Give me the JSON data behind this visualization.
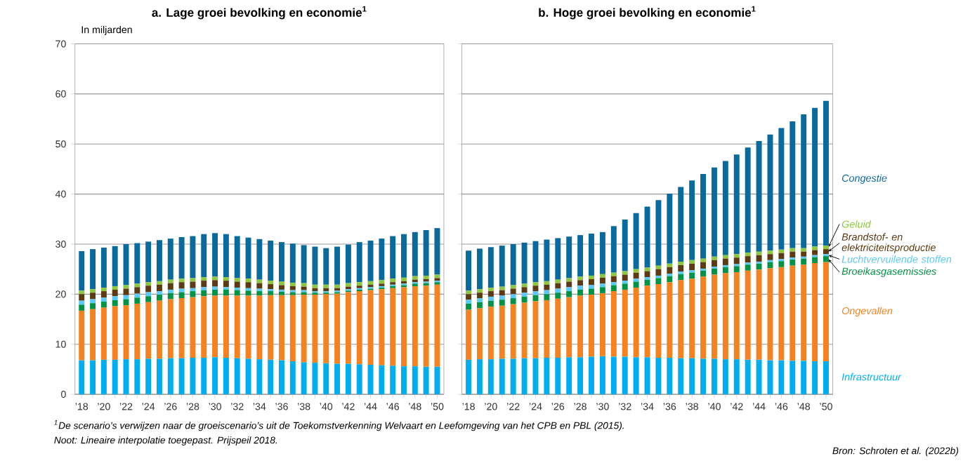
{
  "chart_data": [
    {
      "type": "bar",
      "stacked": true,
      "title": "a. Lage groei bevolking en economie$^{1}$",
      "ylabel": "In miljarden",
      "categories": [
        "’18",
        null,
        "’20",
        null,
        "’22",
        null,
        "’24",
        null,
        "’26",
        null,
        "’28",
        null,
        "’30",
        null,
        "’32",
        null,
        "’34",
        null,
        "’36",
        null,
        "’38",
        null,
        "’40",
        null,
        "’42",
        null,
        "’44",
        null,
        "’46",
        null,
        "’48",
        null,
        "’50"
      ],
      "ylim": [
        0,
        70
      ],
      "yticks": [
        0,
        10,
        20,
        30,
        40,
        50,
        60,
        70
      ],
      "grid": "y",
      "series": [
        {
          "color": "#00aeef",
          "values": [
            6.8,
            6.8,
            6.9,
            6.9,
            7.0,
            7.0,
            7.1,
            7.1,
            7.2,
            7.2,
            7.3,
            7.3,
            7.4,
            7.3,
            7.2,
            7.1,
            7.0,
            6.9,
            6.8,
            6.6,
            6.4,
            6.3,
            6.2,
            6.1,
            6.1,
            6.0,
            5.9,
            5.8,
            5.7,
            5.6,
            5.6,
            5.5,
            5.5
          ]
        },
        {
          "color": "#f58220",
          "values": [
            9.9,
            10.2,
            10.4,
            10.7,
            10.8,
            11.1,
            11.3,
            11.6,
            11.8,
            12.0,
            12.1,
            12.3,
            12.3,
            12.4,
            12.5,
            12.6,
            12.7,
            12.9,
            13.0,
            13.2,
            13.5,
            13.6,
            13.8,
            14.0,
            14.3,
            14.6,
            14.9,
            15.2,
            15.5,
            15.8,
            16.0,
            16.2,
            16.4
          ]
        },
        {
          "color": "#009245",
          "values": [
            1.2,
            1.2,
            1.2,
            1.2,
            1.2,
            1.2,
            1.2,
            1.2,
            1.2,
            1.2,
            1.2,
            1.2,
            1.2,
            1.2,
            1.1,
            1.0,
            0.9,
            0.8,
            0.7,
            0.6,
            0.5,
            0.4,
            0.3,
            0.3,
            0.3,
            0.3,
            0.3,
            0.3,
            0.4,
            0.4,
            0.5,
            0.5,
            0.5
          ]
        },
        {
          "color": "#5bc8f5",
          "values": [
            0.8,
            0.8,
            0.8,
            0.8,
            0.8,
            0.8,
            0.8,
            0.7,
            0.7,
            0.7,
            0.6,
            0.6,
            0.6,
            0.5,
            0.5,
            0.5,
            0.5,
            0.4,
            0.4,
            0.4,
            0.4,
            0.3,
            0.3,
            0.3,
            0.3,
            0.3,
            0.3,
            0.3,
            0.3,
            0.3,
            0.3,
            0.3,
            0.3
          ]
        },
        {
          "color": "#5c3a14",
          "values": [
            1.3,
            1.3,
            1.3,
            1.3,
            1.3,
            1.3,
            1.3,
            1.3,
            1.3,
            1.3,
            1.3,
            1.3,
            1.3,
            1.3,
            1.2,
            1.2,
            1.1,
            1.0,
            0.9,
            0.8,
            0.7,
            0.6,
            0.6,
            0.5,
            0.5,
            0.5,
            0.5,
            0.5,
            0.5,
            0.5,
            0.5,
            0.5,
            0.5
          ]
        },
        {
          "color": "#8dc63f",
          "values": [
            0.7,
            0.7,
            0.7,
            0.7,
            0.7,
            0.7,
            0.7,
            0.7,
            0.7,
            0.7,
            0.7,
            0.7,
            0.7,
            0.7,
            0.7,
            0.7,
            0.7,
            0.7,
            0.7,
            0.7,
            0.7,
            0.7,
            0.7,
            0.7,
            0.7,
            0.7,
            0.7,
            0.7,
            0.7,
            0.7,
            0.7,
            0.7,
            0.7
          ]
        },
        {
          "color": "#0a6a9c",
          "values": [
            7.9,
            8.0,
            8.0,
            8.0,
            8.2,
            8.1,
            8.1,
            8.2,
            8.2,
            8.3,
            8.4,
            8.6,
            8.7,
            8.6,
            8.4,
            8.2,
            8.1,
            8.0,
            7.9,
            7.8,
            7.6,
            7.6,
            7.3,
            7.6,
            7.7,
            8.0,
            8.1,
            8.3,
            8.5,
            8.7,
            8.8,
            9.1,
            9.3
          ]
        }
      ],
      "annotations": [
        "$^{1}$De scenario’s verwijzen naar de groeiscenario’s uit de Toekomstverkenning Welvaart en Leefomgeving van het CPB en PBL (2015).",
        "Noot: Lineaire interpolatie toegepast. Prijspeil 2018."
      ]
    },
    {
      "type": "bar",
      "stacked": true,
      "title": "b. Hoge groei bevolking en economie$^{1}$",
      "categories": [
        "’18",
        null,
        "’20",
        null,
        "’22",
        null,
        "’24",
        null,
        "’26",
        null,
        "’28",
        null,
        "’30",
        null,
        "’32",
        null,
        "’34",
        null,
        "’36",
        null,
        "’38",
        null,
        "’40",
        null,
        "’42",
        null,
        "’44",
        null,
        "’46",
        null,
        "’48",
        null,
        "’50"
      ],
      "ylim": [
        0,
        70
      ],
      "yticks": [
        0,
        10,
        20,
        30,
        40,
        50,
        60,
        70
      ],
      "grid": "y",
      "tick_labels": "x",
      "legend": "right",
      "series": [
        {
          "name": "Infrastructuur",
          "color": "#00aeef",
          "values": [
            6.9,
            7.0,
            7.0,
            7.1,
            7.1,
            7.2,
            7.2,
            7.3,
            7.3,
            7.4,
            7.4,
            7.5,
            7.6,
            7.5,
            7.5,
            7.4,
            7.4,
            7.3,
            7.3,
            7.2,
            7.2,
            7.1,
            7.1,
            7.0,
            7.0,
            6.9,
            6.9,
            6.8,
            6.8,
            6.7,
            6.7,
            6.6,
            6.6
          ]
        },
        {
          "name": "Ongevallen",
          "color": "#f58220",
          "values": [
            10.0,
            10.2,
            10.5,
            10.6,
            10.9,
            11.1,
            11.4,
            11.5,
            11.8,
            12.0,
            12.3,
            12.4,
            12.6,
            13.1,
            13.4,
            13.9,
            14.3,
            14.7,
            15.1,
            15.6,
            15.9,
            16.4,
            16.8,
            17.2,
            17.4,
            17.8,
            18.0,
            18.4,
            18.6,
            19.0,
            19.2,
            19.6,
            19.8
          ]
        },
        {
          "name": "Broeikasgasemissies",
          "color": "#009245",
          "values": [
            1.2,
            1.2,
            1.2,
            1.2,
            1.2,
            1.2,
            1.2,
            1.2,
            1.2,
            1.2,
            1.2,
            1.2,
            1.2,
            1.2,
            1.2,
            1.2,
            1.2,
            1.2,
            1.2,
            1.2,
            1.2,
            1.2,
            1.2,
            1.2,
            1.2,
            1.2,
            1.2,
            1.2,
            1.2,
            1.2,
            1.2,
            1.2,
            1.2
          ]
        },
        {
          "name": "Luchtvervuilende stoffen",
          "color": "#5bc8f5",
          "values": [
            0.8,
            0.8,
            0.8,
            0.8,
            0.8,
            0.8,
            0.8,
            0.8,
            0.8,
            0.8,
            0.8,
            0.7,
            0.7,
            0.6,
            0.6,
            0.6,
            0.5,
            0.5,
            0.5,
            0.5,
            0.5,
            0.4,
            0.4,
            0.4,
            0.4,
            0.4,
            0.4,
            0.4,
            0.4,
            0.4,
            0.4,
            0.4,
            0.4
          ]
        },
        {
          "name": "Brandstof- en elektriciteitsproductie",
          "color": "#5c3a14",
          "values": [
            1.1,
            1.1,
            1.1,
            1.1,
            1.1,
            1.1,
            1.1,
            1.1,
            1.1,
            1.1,
            1.1,
            1.2,
            1.2,
            1.2,
            1.2,
            1.2,
            1.2,
            1.3,
            1.3,
            1.3,
            1.3,
            1.3,
            1.3,
            1.3,
            1.3,
            1.3,
            1.3,
            1.2,
            1.2,
            1.2,
            1.0,
            1.0,
            1.0
          ]
        },
        {
          "name": "Geluid",
          "color": "#8dc63f",
          "values": [
            0.7,
            0.7,
            0.7,
            0.7,
            0.7,
            0.7,
            0.7,
            0.7,
            0.7,
            0.7,
            0.7,
            0.7,
            0.7,
            0.7,
            0.7,
            0.7,
            0.7,
            0.7,
            0.7,
            0.7,
            0.7,
            0.7,
            0.7,
            0.7,
            0.7,
            0.7,
            0.7,
            0.7,
            0.7,
            0.7,
            0.7,
            0.7,
            0.7
          ]
        },
        {
          "name": "Congestie",
          "color": "#0a6a9c",
          "values": [
            8.0,
            8.1,
            8.1,
            8.2,
            8.2,
            8.2,
            8.2,
            8.3,
            8.3,
            8.3,
            8.3,
            8.4,
            8.4,
            9.3,
            10.3,
            11.2,
            12.2,
            13.1,
            14.0,
            14.9,
            15.9,
            16.9,
            17.8,
            18.8,
            19.9,
            21.0,
            22.1,
            23.2,
            24.3,
            25.3,
            26.7,
            27.7,
            28.9
          ]
        }
      ],
      "annotations": [
        "Bron: Schroten et al. (2022b)"
      ]
    }
  ]
}
